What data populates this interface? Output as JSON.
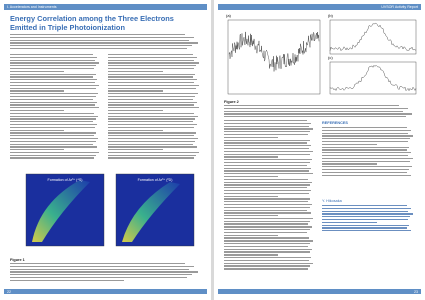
{
  "left_page": {
    "header": "I. Accelerators and Instruments",
    "title": "Energy Correlation among the Three Electrons Emitted in Triple Photoionization",
    "figures": [
      {
        "label": "Formation of Ar³⁺ (⁴S)"
      },
      {
        "label": "Formation of Ar³⁺ (²D)"
      }
    ],
    "caption": "Figure 1",
    "page_number": "22"
  },
  "right_page": {
    "header": "UVSOR Activity Report",
    "panels": [
      "(a)",
      "(b)",
      "(c)"
    ],
    "caption": "Figure 2",
    "references_heading": "REFERENCES",
    "authors_heading": "Y. Hikosaka",
    "page_number": "23"
  }
}
